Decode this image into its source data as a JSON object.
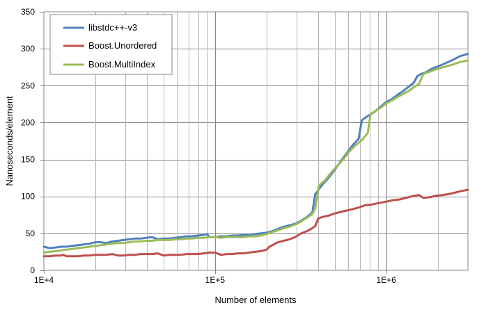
{
  "chart_data": {
    "type": "line",
    "title": "",
    "xlabel": "Number of elements",
    "ylabel": "Nanoseconds/element",
    "x_scale": "log",
    "xlim": [
      10000,
      3000000
    ],
    "ylim": [
      0,
      350
    ],
    "y_ticks": [
      0,
      50,
      100,
      150,
      200,
      250,
      300,
      350
    ],
    "x_tick_labels": [
      {
        "value": 10000,
        "label": "1E+4"
      },
      {
        "value": 100000,
        "label": "1E+5"
      },
      {
        "value": 1000000,
        "label": "1E+6"
      }
    ],
    "grid": true,
    "legend_position": "top-left",
    "series": [
      {
        "name": "libstdc++-v3",
        "color": "#4f81bd",
        "points": [
          [
            10000,
            32
          ],
          [
            10800,
            30
          ],
          [
            11700,
            31
          ],
          [
            12600,
            32
          ],
          [
            13600,
            32
          ],
          [
            14700,
            33
          ],
          [
            15800,
            34
          ],
          [
            17100,
            35
          ],
          [
            18500,
            36
          ],
          [
            20000,
            38
          ],
          [
            21500,
            38
          ],
          [
            23200,
            37
          ],
          [
            25100,
            39
          ],
          [
            27100,
            40
          ],
          [
            29200,
            41
          ],
          [
            31500,
            42
          ],
          [
            34000,
            43
          ],
          [
            36800,
            43
          ],
          [
            39700,
            44
          ],
          [
            42800,
            45
          ],
          [
            46300,
            42
          ],
          [
            50000,
            43
          ],
          [
            54000,
            43
          ],
          [
            58300,
            44
          ],
          [
            63000,
            45
          ],
          [
            68000,
            46
          ],
          [
            73400,
            46
          ],
          [
            79300,
            47
          ],
          [
            85700,
            48
          ],
          [
            90000,
            49
          ],
          [
            92500,
            45
          ],
          [
            100000,
            45
          ],
          [
            108000,
            46
          ],
          [
            117000,
            46
          ],
          [
            126000,
            47
          ],
          [
            136000,
            47
          ],
          [
            147000,
            48
          ],
          [
            158000,
            48
          ],
          [
            171000,
            49
          ],
          [
            185000,
            50
          ],
          [
            200000,
            51
          ],
          [
            216000,
            53
          ],
          [
            233000,
            56
          ],
          [
            252000,
            59
          ],
          [
            272000,
            61
          ],
          [
            294000,
            63
          ],
          [
            318000,
            67
          ],
          [
            343000,
            72
          ],
          [
            370000,
            78
          ],
          [
            385000,
            103
          ],
          [
            420000,
            115
          ],
          [
            460000,
            125
          ],
          [
            500000,
            136
          ],
          [
            540000,
            147
          ],
          [
            590000,
            159
          ],
          [
            640000,
            170
          ],
          [
            690000,
            178
          ],
          [
            720000,
            203
          ],
          [
            780000,
            209
          ],
          [
            850000,
            214
          ],
          [
            920000,
            221
          ],
          [
            1000000,
            228
          ],
          [
            1080000,
            232
          ],
          [
            1170000,
            238
          ],
          [
            1260000,
            243
          ],
          [
            1360000,
            249
          ],
          [
            1450000,
            254
          ],
          [
            1520000,
            263
          ],
          [
            1600000,
            266
          ],
          [
            1700000,
            268
          ],
          [
            1850000,
            273
          ],
          [
            2000000,
            276
          ],
          [
            2200000,
            280
          ],
          [
            2450000,
            285
          ],
          [
            2700000,
            290
          ],
          [
            3000000,
            293
          ]
        ]
      },
      {
        "name": "Boost.Unordered",
        "color": "#c0504d",
        "points": [
          [
            10000,
            19
          ],
          [
            10800,
            19
          ],
          [
            11700,
            20
          ],
          [
            12600,
            20
          ],
          [
            13000,
            21
          ],
          [
            13600,
            19
          ],
          [
            14700,
            19
          ],
          [
            15800,
            19
          ],
          [
            17100,
            20
          ],
          [
            18500,
            20
          ],
          [
            20000,
            21
          ],
          [
            21500,
            21
          ],
          [
            23200,
            21
          ],
          [
            25100,
            22
          ],
          [
            27100,
            20
          ],
          [
            29200,
            20
          ],
          [
            31500,
            21
          ],
          [
            34000,
            21
          ],
          [
            36800,
            22
          ],
          [
            39700,
            22
          ],
          [
            42800,
            22
          ],
          [
            46300,
            23
          ],
          [
            50000,
            20
          ],
          [
            54000,
            21
          ],
          [
            58300,
            21
          ],
          [
            63000,
            21
          ],
          [
            68000,
            22
          ],
          [
            73400,
            22
          ],
          [
            79300,
            22
          ],
          [
            85700,
            23
          ],
          [
            92500,
            24
          ],
          [
            100000,
            24
          ],
          [
            108000,
            21
          ],
          [
            117000,
            22
          ],
          [
            126000,
            22
          ],
          [
            136000,
            23
          ],
          [
            147000,
            23
          ],
          [
            158000,
            24
          ],
          [
            171000,
            25
          ],
          [
            185000,
            26
          ],
          [
            200000,
            28
          ],
          [
            208000,
            32
          ],
          [
            220000,
            35
          ],
          [
            233000,
            38
          ],
          [
            252000,
            40
          ],
          [
            272000,
            42
          ],
          [
            294000,
            45
          ],
          [
            318000,
            50
          ],
          [
            343000,
            53
          ],
          [
            370000,
            57
          ],
          [
            385000,
            60
          ],
          [
            400000,
            70
          ],
          [
            420000,
            72
          ],
          [
            460000,
            74
          ],
          [
            500000,
            77
          ],
          [
            540000,
            79
          ],
          [
            590000,
            81
          ],
          [
            640000,
            83
          ],
          [
            690000,
            85
          ],
          [
            750000,
            88
          ],
          [
            820000,
            89
          ],
          [
            900000,
            91
          ],
          [
            1000000,
            93
          ],
          [
            1100000,
            95
          ],
          [
            1200000,
            96
          ],
          [
            1300000,
            98
          ],
          [
            1400000,
            100
          ],
          [
            1550000,
            102
          ],
          [
            1650000,
            98
          ],
          [
            1800000,
            99
          ],
          [
            1950000,
            101
          ],
          [
            2150000,
            102
          ],
          [
            2400000,
            104
          ],
          [
            2700000,
            107
          ],
          [
            3000000,
            109
          ]
        ]
      },
      {
        "name": "Boost.MultiIndex",
        "color": "#9bbb59",
        "points": [
          [
            10000,
            24
          ],
          [
            10800,
            25
          ],
          [
            11700,
            26
          ],
          [
            12600,
            27
          ],
          [
            13600,
            28
          ],
          [
            14700,
            29
          ],
          [
            15800,
            30
          ],
          [
            17100,
            31
          ],
          [
            18500,
            32
          ],
          [
            20000,
            33
          ],
          [
            21500,
            34
          ],
          [
            23200,
            35
          ],
          [
            25100,
            36
          ],
          [
            27100,
            37
          ],
          [
            29200,
            37
          ],
          [
            31500,
            38
          ],
          [
            34000,
            39
          ],
          [
            36800,
            39
          ],
          [
            39700,
            40
          ],
          [
            42800,
            40
          ],
          [
            46300,
            41
          ],
          [
            50000,
            41
          ],
          [
            54000,
            41
          ],
          [
            58300,
            42
          ],
          [
            63000,
            42
          ],
          [
            68000,
            43
          ],
          [
            73400,
            43
          ],
          [
            79300,
            44
          ],
          [
            85700,
            44
          ],
          [
            92500,
            45
          ],
          [
            100000,
            45
          ],
          [
            108000,
            44
          ],
          [
            117000,
            45
          ],
          [
            126000,
            45
          ],
          [
            136000,
            45
          ],
          [
            147000,
            45
          ],
          [
            158000,
            46
          ],
          [
            171000,
            46
          ],
          [
            185000,
            47
          ],
          [
            200000,
            49
          ],
          [
            216000,
            52
          ],
          [
            233000,
            54
          ],
          [
            252000,
            57
          ],
          [
            272000,
            59
          ],
          [
            294000,
            62
          ],
          [
            318000,
            66
          ],
          [
            343000,
            71
          ],
          [
            370000,
            76
          ],
          [
            385000,
            84
          ],
          [
            405000,
            115
          ],
          [
            440000,
            122
          ],
          [
            480000,
            133
          ],
          [
            520000,
            142
          ],
          [
            560000,
            150
          ],
          [
            610000,
            161
          ],
          [
            660000,
            169
          ],
          [
            720000,
            176
          ],
          [
            780000,
            186
          ],
          [
            810000,
            212
          ],
          [
            870000,
            216
          ],
          [
            940000,
            221
          ],
          [
            1000000,
            226
          ],
          [
            1080000,
            230
          ],
          [
            1170000,
            235
          ],
          [
            1260000,
            239
          ],
          [
            1360000,
            243
          ],
          [
            1450000,
            248
          ],
          [
            1550000,
            252
          ],
          [
            1650000,
            266
          ],
          [
            1800000,
            269
          ],
          [
            1950000,
            272
          ],
          [
            2150000,
            275
          ],
          [
            2400000,
            278
          ],
          [
            2700000,
            282
          ],
          [
            3000000,
            284
          ]
        ]
      }
    ]
  }
}
